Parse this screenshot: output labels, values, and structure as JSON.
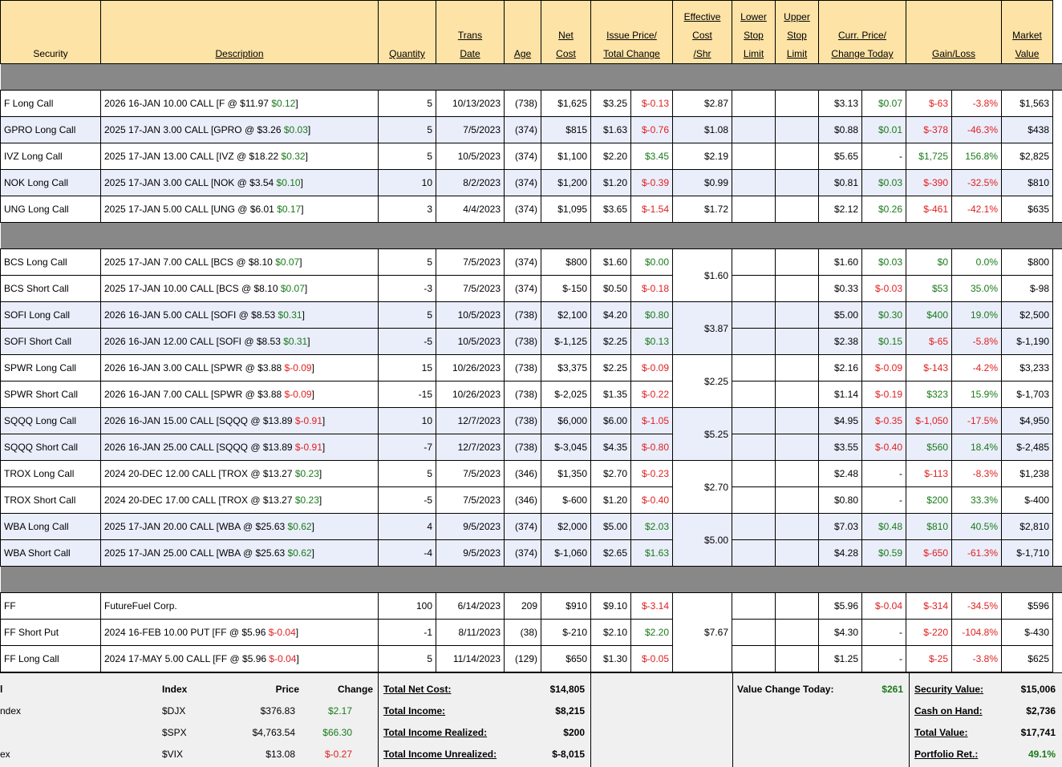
{
  "headers": {
    "security": "Security",
    "description": "Description",
    "quantity": "Quantity",
    "trans_date": [
      "Trans",
      "Date"
    ],
    "age": "Age",
    "net_cost": [
      "Net",
      "Cost"
    ],
    "issue_price": [
      "Issue Price/",
      "Total Change"
    ],
    "effective_cost": [
      "Effective",
      "Cost",
      "/Shr"
    ],
    "lower_stop": [
      "Lower",
      "Stop",
      "Limit"
    ],
    "upper_stop": [
      "Upper",
      "Stop",
      "Limit"
    ],
    "curr_price": [
      "Curr. Price/",
      "Change Today"
    ],
    "gain_loss": "Gain/Loss",
    "market_value": [
      "Market",
      "Value"
    ]
  },
  "colors": {
    "header_bg": "#fde3a6",
    "row_alt_bg": "#eaeefb",
    "separator_bg": "#888888",
    "positive": "#1a7a1a",
    "negative": "#e02020"
  },
  "rows": [
    {
      "sep": true
    },
    {
      "security": "F Long Call",
      "desc": "2026 16-JAN 10.00 CALL [F @ $11.97 ",
      "desc_chg": "$0.12",
      "desc_end": "]",
      "desc_chg_dir": "pos",
      "qty": "5",
      "date": "10/13/2023",
      "age": "(738)",
      "net": "$1,625",
      "issue": "$3.25",
      "tot_chg": "$-0.13",
      "tot_dir": "neg",
      "eff": "$2.87",
      "eff_span": 1,
      "curr": "$3.13",
      "today": "$0.07",
      "today_dir": "pos",
      "gl": "$-63",
      "gl_dir": "neg",
      "glp": "-3.8%",
      "mv": "$1,563",
      "blue": false
    },
    {
      "security": "GPRO Long Call",
      "desc": "2025 17-JAN 3.00 CALL [GPRO @ $3.26 ",
      "desc_chg": "$0.03",
      "desc_end": "]",
      "desc_chg_dir": "pos",
      "qty": "5",
      "date": "7/5/2023",
      "age": "(374)",
      "net": "$815",
      "issue": "$1.63",
      "tot_chg": "$-0.76",
      "tot_dir": "neg",
      "eff": "$1.08",
      "eff_span": 1,
      "curr": "$0.88",
      "today": "$0.01",
      "today_dir": "pos",
      "gl": "$-378",
      "gl_dir": "neg",
      "glp": "-46.3%",
      "mv": "$438",
      "blue": true
    },
    {
      "security": "IVZ Long Call",
      "desc": "2025 17-JAN 13.00 CALL [IVZ @ $18.22 ",
      "desc_chg": "$0.32",
      "desc_end": "]",
      "desc_chg_dir": "pos",
      "qty": "5",
      "date": "10/5/2023",
      "age": "(374)",
      "net": "$1,100",
      "issue": "$2.20",
      "tot_chg": "$3.45",
      "tot_dir": "pos",
      "eff": "$2.19",
      "eff_span": 1,
      "curr": "$5.65",
      "today": "-",
      "today_dir": "",
      "gl": "$1,725",
      "gl_dir": "pos",
      "glp": "156.8%",
      "mv": "$2,825",
      "blue": false
    },
    {
      "security": "NOK Long Call",
      "desc": "2025 17-JAN 3.00 CALL [NOK @ $3.54 ",
      "desc_chg": "$0.10",
      "desc_end": "]",
      "desc_chg_dir": "pos",
      "qty": "10",
      "date": "8/2/2023",
      "age": "(374)",
      "net": "$1,200",
      "issue": "$1.20",
      "tot_chg": "$-0.39",
      "tot_dir": "neg",
      "eff": "$0.99",
      "eff_span": 1,
      "curr": "$0.81",
      "today": "$0.03",
      "today_dir": "pos",
      "gl": "$-390",
      "gl_dir": "neg",
      "glp": "-32.5%",
      "mv": "$810",
      "blue": true
    },
    {
      "security": "UNG Long Call",
      "desc": "2025 17-JAN 5.00 CALL [UNG @ $6.01 ",
      "desc_chg": "$0.17",
      "desc_end": "]",
      "desc_chg_dir": "pos",
      "qty": "3",
      "date": "4/4/2023",
      "age": "(374)",
      "net": "$1,095",
      "issue": "$3.65",
      "tot_chg": "$-1.54",
      "tot_dir": "neg",
      "eff": "$1.72",
      "eff_span": 1,
      "curr": "$2.12",
      "today": "$0.26",
      "today_dir": "pos",
      "gl": "$-461",
      "gl_dir": "neg",
      "glp": "-42.1%",
      "mv": "$635",
      "blue": false
    },
    {
      "sep": true
    },
    {
      "security": "BCS Long Call",
      "desc": "2025 17-JAN 7.00 CALL [BCS @ $8.10 ",
      "desc_chg": "$0.07",
      "desc_end": "]",
      "desc_chg_dir": "pos",
      "qty": "5",
      "date": "7/5/2023",
      "age": "(374)",
      "net": "$800",
      "issue": "$1.60",
      "tot_chg": "$0.00",
      "tot_dir": "pos",
      "eff": "$1.60",
      "eff_span": 2,
      "curr": "$1.60",
      "today": "$0.03",
      "today_dir": "pos",
      "gl": "$0",
      "gl_dir": "pos",
      "glp": "0.0%",
      "mv": "$800",
      "blue": false
    },
    {
      "security": "BCS Short Call",
      "desc": "2025 17-JAN 10.00 CALL [BCS @ $8.10 ",
      "desc_chg": "$0.07",
      "desc_end": "]",
      "desc_chg_dir": "pos",
      "qty": "-3",
      "date": "7/5/2023",
      "age": "(374)",
      "net": "$-150",
      "issue": "$0.50",
      "tot_chg": "$-0.18",
      "tot_dir": "neg",
      "eff_span": 0,
      "curr": "$0.33",
      "today": "$-0.03",
      "today_dir": "neg",
      "gl": "$53",
      "gl_dir": "pos",
      "glp": "35.0%",
      "mv": "$-98",
      "blue": false
    },
    {
      "security": "SOFI Long Call",
      "desc": "2026 16-JAN 5.00 CALL [SOFI @ $8.53 ",
      "desc_chg": "$0.31",
      "desc_end": "]",
      "desc_chg_dir": "pos",
      "qty": "5",
      "date": "10/5/2023",
      "age": "(738)",
      "net": "$2,100",
      "issue": "$4.20",
      "tot_chg": "$0.80",
      "tot_dir": "pos",
      "eff": "$3.87",
      "eff_span": 2,
      "curr": "$5.00",
      "today": "$0.30",
      "today_dir": "pos",
      "gl": "$400",
      "gl_dir": "pos",
      "glp": "19.0%",
      "mv": "$2,500",
      "blue": true
    },
    {
      "security": "SOFI Short Call",
      "desc": "2026 16-JAN 12.00 CALL [SOFI @ $8.53 ",
      "desc_chg": "$0.31",
      "desc_end": "]",
      "desc_chg_dir": "pos",
      "qty": "-5",
      "date": "10/5/2023",
      "age": "(738)",
      "net": "$-1,125",
      "issue": "$2.25",
      "tot_chg": "$0.13",
      "tot_dir": "pos",
      "eff_span": 0,
      "curr": "$2.38",
      "today": "$0.15",
      "today_dir": "pos",
      "gl": "$-65",
      "gl_dir": "neg",
      "glp": "-5.8%",
      "mv": "$-1,190",
      "blue": true
    },
    {
      "security": "SPWR Long Call",
      "desc": "2026 16-JAN 3.00 CALL [SPWR @ $3.88 ",
      "desc_chg": "$-0.09",
      "desc_end": "]",
      "desc_chg_dir": "neg",
      "qty": "15",
      "date": "10/26/2023",
      "age": "(738)",
      "net": "$3,375",
      "issue": "$2.25",
      "tot_chg": "$-0.09",
      "tot_dir": "neg",
      "eff": "$2.25",
      "eff_span": 2,
      "curr": "$2.16",
      "today": "$-0.09",
      "today_dir": "neg",
      "gl": "$-143",
      "gl_dir": "neg",
      "glp": "-4.2%",
      "mv": "$3,233",
      "blue": false
    },
    {
      "security": "SPWR Short Call",
      "desc": "2026 16-JAN 7.00 CALL [SPWR @ $3.88 ",
      "desc_chg": "$-0.09",
      "desc_end": "]",
      "desc_chg_dir": "neg",
      "qty": "-15",
      "date": "10/26/2023",
      "age": "(738)",
      "net": "$-2,025",
      "issue": "$1.35",
      "tot_chg": "$-0.22",
      "tot_dir": "neg",
      "eff_span": 0,
      "curr": "$1.14",
      "today": "$-0.19",
      "today_dir": "neg",
      "gl": "$323",
      "gl_dir": "pos",
      "glp": "15.9%",
      "mv": "$-1,703",
      "blue": false
    },
    {
      "security": "SQQQ Long Call",
      "desc": "2026 16-JAN 15.00 CALL [SQQQ @ $13.89 ",
      "desc_chg": "$-0.91",
      "desc_end": "]",
      "desc_chg_dir": "neg",
      "qty": "10",
      "date": "12/7/2023",
      "age": "(738)",
      "net": "$6,000",
      "issue": "$6.00",
      "tot_chg": "$-1.05",
      "tot_dir": "neg",
      "eff": "$5.25",
      "eff_span": 2,
      "curr": "$4.95",
      "today": "$-0.35",
      "today_dir": "neg",
      "gl": "$-1,050",
      "gl_dir": "neg",
      "glp": "-17.5%",
      "mv": "$4,950",
      "blue": true
    },
    {
      "security": "SQQQ Short Call",
      "desc": "2026 16-JAN 25.00 CALL [SQQQ @ $13.89 ",
      "desc_chg": "$-0.91",
      "desc_end": "]",
      "desc_chg_dir": "neg",
      "qty": "-7",
      "date": "12/7/2023",
      "age": "(738)",
      "net": "$-3,045",
      "issue": "$4.35",
      "tot_chg": "$-0.80",
      "tot_dir": "neg",
      "eff_span": 0,
      "curr": "$3.55",
      "today": "$-0.40",
      "today_dir": "neg",
      "gl": "$560",
      "gl_dir": "pos",
      "glp": "18.4%",
      "mv": "$-2,485",
      "blue": true
    },
    {
      "security": "TROX Long Call",
      "desc": "2024 20-DEC 12.00 CALL [TROX @ $13.27 ",
      "desc_chg": "$0.23",
      "desc_end": "]",
      "desc_chg_dir": "pos",
      "qty": "5",
      "date": "7/5/2023",
      "age": "(346)",
      "net": "$1,350",
      "issue": "$2.70",
      "tot_chg": "$-0.23",
      "tot_dir": "neg",
      "eff": "$2.70",
      "eff_span": 2,
      "curr": "$2.48",
      "today": "-",
      "today_dir": "",
      "gl": "$-113",
      "gl_dir": "neg",
      "glp": "-8.3%",
      "mv": "$1,238",
      "blue": false
    },
    {
      "security": "TROX Short Call",
      "desc": "2024 20-DEC 17.00 CALL [TROX @ $13.27 ",
      "desc_chg": "$0.23",
      "desc_end": "]",
      "desc_chg_dir": "pos",
      "qty": "-5",
      "date": "7/5/2023",
      "age": "(346)",
      "net": "$-600",
      "issue": "$1.20",
      "tot_chg": "$-0.40",
      "tot_dir": "neg",
      "eff_span": 0,
      "curr": "$0.80",
      "today": "-",
      "today_dir": "",
      "gl": "$200",
      "gl_dir": "pos",
      "glp": "33.3%",
      "mv": "$-400",
      "blue": false
    },
    {
      "security": "WBA Long Call",
      "desc": "2025 17-JAN 20.00 CALL [WBA @ $25.63 ",
      "desc_chg": "$0.62",
      "desc_end": "]",
      "desc_chg_dir": "pos",
      "qty": "4",
      "date": "9/5/2023",
      "age": "(374)",
      "net": "$2,000",
      "issue": "$5.00",
      "tot_chg": "$2.03",
      "tot_dir": "pos",
      "eff": "$5.00",
      "eff_span": 2,
      "curr": "$7.03",
      "today": "$0.48",
      "today_dir": "pos",
      "gl": "$810",
      "gl_dir": "pos",
      "glp": "40.5%",
      "mv": "$2,810",
      "blue": true
    },
    {
      "security": "WBA Short Call",
      "desc": "2025 17-JAN 25.00 CALL [WBA @ $25.63 ",
      "desc_chg": "$0.62",
      "desc_end": "]",
      "desc_chg_dir": "pos",
      "qty": "-4",
      "date": "9/5/2023",
      "age": "(374)",
      "net": "$-1,060",
      "issue": "$2.65",
      "tot_chg": "$1.63",
      "tot_dir": "pos",
      "eff_span": 0,
      "curr": "$4.28",
      "today": "$0.59",
      "today_dir": "pos",
      "gl": "$-650",
      "gl_dir": "neg",
      "glp": "-61.3%",
      "mv": "$-1,710",
      "blue": true
    },
    {
      "sep": true
    },
    {
      "security": "FF",
      "desc": "FutureFuel Corp.",
      "desc_chg": "",
      "desc_end": "",
      "desc_chg_dir": "",
      "qty": "100",
      "date": "6/14/2023",
      "age": "209",
      "net": "$910",
      "issue": "$9.10",
      "tot_chg": "$-3.14",
      "tot_dir": "neg",
      "eff": "$7.67",
      "eff_span": 3,
      "curr": "$5.96",
      "today": "$-0.04",
      "today_dir": "neg",
      "gl": "$-314",
      "gl_dir": "neg",
      "glp": "-34.5%",
      "mv": "$596",
      "blue": false
    },
    {
      "security": "FF Short Put",
      "desc": "2024 16-FEB 10.00 PUT [FF @ $5.96 ",
      "desc_chg": "$-0.04",
      "desc_end": "]",
      "desc_chg_dir": "neg",
      "qty": "-1",
      "date": "8/11/2023",
      "age": "(38)",
      "net": "$-210",
      "issue": "$2.10",
      "tot_chg": "$2.20",
      "tot_dir": "pos",
      "eff_span": 0,
      "curr": "$4.30",
      "today": "-",
      "today_dir": "",
      "gl": "$-220",
      "gl_dir": "neg",
      "glp": "-104.8%",
      "mv": "$-430",
      "blue": false
    },
    {
      "security": "FF Long Call",
      "desc": "2024 17-MAY 5.00 CALL [FF @ $5.96 ",
      "desc_chg": "$-0.04",
      "desc_end": "]",
      "desc_chg_dir": "neg",
      "qty": "5",
      "date": "11/14/2023",
      "age": "(129)",
      "net": "$650",
      "issue": "$1.30",
      "tot_chg": "$-0.05",
      "tot_dir": "neg",
      "eff_span": 0,
      "curr": "$1.25",
      "today": "-",
      "today_dir": "",
      "gl": "$-25",
      "gl_dir": "neg",
      "glp": "-3.8%",
      "mv": "$625",
      "blue": false
    }
  ],
  "footer": {
    "index_header": "Index",
    "price_header": "Price",
    "change_header": "Change",
    "col_a_header": "l",
    "indices": [
      {
        "name": "ndex",
        "symbol": "$DJX",
        "price": "$376.83",
        "change": "$2.17",
        "dir": "pos"
      },
      {
        "name": "",
        "symbol": "$SPX",
        "price": "$4,763.54",
        "change": "$66.30",
        "dir": "pos"
      },
      {
        "name": "ex",
        "symbol": "$VIX",
        "price": "$13.08",
        "change": "$-0.27",
        "dir": "neg"
      }
    ],
    "totals": [
      {
        "label": "Total Net Cost:",
        "value": "$14,805"
      },
      {
        "label": "Total Income:",
        "value": "$8,215"
      },
      {
        "label": "Total Income Realized:",
        "value": "$200"
      },
      {
        "label": "Total Income Unrealized:",
        "value": "$-8,015"
      }
    ],
    "value_change_label": "Value Change Today:",
    "value_change": "$261",
    "summary": [
      {
        "label": "Security Value:",
        "value": "$15,006",
        "dir": ""
      },
      {
        "label": "Cash on Hand:",
        "value": "$2,736",
        "dir": ""
      },
      {
        "label": "Total Value:",
        "value": "$17,741",
        "dir": ""
      },
      {
        "label": "Portfolio Ret.:",
        "value": "49.1%",
        "dir": "pos"
      }
    ]
  }
}
